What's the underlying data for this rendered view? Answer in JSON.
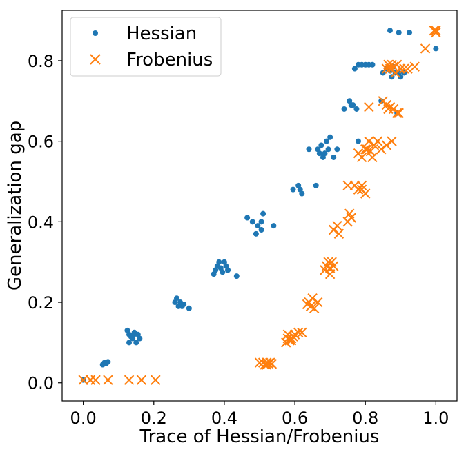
{
  "chart_data": {
    "type": "scatter",
    "title": "",
    "xlabel": "Trace of Hessian/Frobenius",
    "ylabel": "Generalization gap",
    "xlim": [
      -0.06,
      1.06
    ],
    "ylim": [
      -0.045,
      0.925
    ],
    "xticks": [
      {
        "value": 0.0,
        "label": "0.0"
      },
      {
        "value": 0.2,
        "label": "0.2"
      },
      {
        "value": 0.4,
        "label": "0.4"
      },
      {
        "value": 0.6,
        "label": "0.6"
      },
      {
        "value": 0.8,
        "label": "0.8"
      },
      {
        "value": 1.0,
        "label": "1.0"
      }
    ],
    "yticks": [
      {
        "value": 0.0,
        "label": "0.0"
      },
      {
        "value": 0.2,
        "label": "0.2"
      },
      {
        "value": 0.4,
        "label": "0.4"
      },
      {
        "value": 0.6,
        "label": "0.6"
      },
      {
        "value": 0.8,
        "label": "0.8"
      }
    ],
    "grid": false,
    "legend_position": "top-left",
    "series": [
      {
        "name": "Hessian",
        "marker": "circle",
        "color": "#1f77b4",
        "points": [
          [
            0.0,
            0.007
          ],
          [
            0.055,
            0.045
          ],
          [
            0.06,
            0.05
          ],
          [
            0.065,
            0.048
          ],
          [
            0.07,
            0.052
          ],
          [
            0.058,
            0.047
          ],
          [
            0.125,
            0.13
          ],
          [
            0.13,
            0.12
          ],
          [
            0.135,
            0.115
          ],
          [
            0.14,
            0.11
          ],
          [
            0.145,
            0.125
          ],
          [
            0.15,
            0.1
          ],
          [
            0.155,
            0.12
          ],
          [
            0.16,
            0.11
          ],
          [
            0.13,
            0.1
          ],
          [
            0.142,
            0.118
          ],
          [
            0.26,
            0.2
          ],
          [
            0.265,
            0.21
          ],
          [
            0.27,
            0.19
          ],
          [
            0.275,
            0.2
          ],
          [
            0.28,
            0.19
          ],
          [
            0.285,
            0.195
          ],
          [
            0.3,
            0.185
          ],
          [
            0.37,
            0.27
          ],
          [
            0.375,
            0.28
          ],
          [
            0.38,
            0.29
          ],
          [
            0.385,
            0.3
          ],
          [
            0.39,
            0.285
          ],
          [
            0.395,
            0.275
          ],
          [
            0.4,
            0.3
          ],
          [
            0.405,
            0.29
          ],
          [
            0.41,
            0.28
          ],
          [
            0.435,
            0.265
          ],
          [
            0.465,
            0.41
          ],
          [
            0.48,
            0.4
          ],
          [
            0.49,
            0.37
          ],
          [
            0.495,
            0.39
          ],
          [
            0.505,
            0.4
          ],
          [
            0.51,
            0.42
          ],
          [
            0.505,
            0.38
          ],
          [
            0.54,
            0.39
          ],
          [
            0.595,
            0.48
          ],
          [
            0.61,
            0.49
          ],
          [
            0.615,
            0.48
          ],
          [
            0.62,
            0.47
          ],
          [
            0.66,
            0.49
          ],
          [
            0.64,
            0.58
          ],
          [
            0.665,
            0.58
          ],
          [
            0.67,
            0.57
          ],
          [
            0.675,
            0.59
          ],
          [
            0.68,
            0.56
          ],
          [
            0.685,
            0.57
          ],
          [
            0.69,
            0.6
          ],
          [
            0.695,
            0.58
          ],
          [
            0.7,
            0.61
          ],
          [
            0.71,
            0.56
          ],
          [
            0.72,
            0.58
          ],
          [
            0.74,
            0.68
          ],
          [
            0.755,
            0.7
          ],
          [
            0.76,
            0.69
          ],
          [
            0.765,
            0.69
          ],
          [
            0.775,
            0.68
          ],
          [
            0.78,
            0.6
          ],
          [
            0.77,
            0.78
          ],
          [
            0.78,
            0.79
          ],
          [
            0.79,
            0.79
          ],
          [
            0.8,
            0.79
          ],
          [
            0.81,
            0.79
          ],
          [
            0.82,
            0.79
          ],
          [
            0.845,
            0.7
          ],
          [
            0.85,
            0.77
          ],
          [
            0.86,
            0.78
          ],
          [
            0.87,
            0.775
          ],
          [
            0.875,
            0.76
          ],
          [
            0.88,
            0.785
          ],
          [
            0.885,
            0.77
          ],
          [
            0.89,
            0.67
          ],
          [
            0.895,
            0.77
          ],
          [
            0.9,
            0.76
          ],
          [
            0.91,
            0.77
          ],
          [
            0.87,
            0.875
          ],
          [
            0.895,
            0.87
          ],
          [
            0.925,
            0.87
          ],
          [
            1.0,
            0.83
          ]
        ]
      },
      {
        "name": "Frobenius",
        "marker": "x",
        "color": "#ff7f0e",
        "points": [
          [
            0.0,
            0.007
          ],
          [
            0.02,
            0.007
          ],
          [
            0.035,
            0.007
          ],
          [
            0.07,
            0.007
          ],
          [
            0.13,
            0.007
          ],
          [
            0.165,
            0.007
          ],
          [
            0.205,
            0.007
          ],
          [
            0.5,
            0.05
          ],
          [
            0.51,
            0.05
          ],
          [
            0.515,
            0.045
          ],
          [
            0.52,
            0.05
          ],
          [
            0.525,
            0.048
          ],
          [
            0.53,
            0.05
          ],
          [
            0.535,
            0.047
          ],
          [
            0.52,
            0.045
          ],
          [
            0.575,
            0.1
          ],
          [
            0.58,
            0.11
          ],
          [
            0.585,
            0.105
          ],
          [
            0.59,
            0.11
          ],
          [
            0.595,
            0.115
          ],
          [
            0.6,
            0.12
          ],
          [
            0.61,
            0.125
          ],
          [
            0.62,
            0.125
          ],
          [
            0.58,
            0.12
          ],
          [
            0.59,
            0.105
          ],
          [
            0.635,
            0.195
          ],
          [
            0.64,
            0.2
          ],
          [
            0.645,
            0.19
          ],
          [
            0.65,
            0.21
          ],
          [
            0.655,
            0.185
          ],
          [
            0.665,
            0.2
          ],
          [
            0.685,
            0.28
          ],
          [
            0.69,
            0.29
          ],
          [
            0.695,
            0.3
          ],
          [
            0.7,
            0.27
          ],
          [
            0.705,
            0.3
          ],
          [
            0.71,
            0.29
          ],
          [
            0.7,
            0.285
          ],
          [
            0.71,
            0.38
          ],
          [
            0.72,
            0.39
          ],
          [
            0.725,
            0.37
          ],
          [
            0.75,
            0.4
          ],
          [
            0.755,
            0.42
          ],
          [
            0.76,
            0.41
          ],
          [
            0.75,
            0.49
          ],
          [
            0.77,
            0.49
          ],
          [
            0.78,
            0.48
          ],
          [
            0.79,
            0.49
          ],
          [
            0.8,
            0.47
          ],
          [
            0.79,
            0.48
          ],
          [
            0.78,
            0.57
          ],
          [
            0.79,
            0.56
          ],
          [
            0.8,
            0.58
          ],
          [
            0.805,
            0.58
          ],
          [
            0.81,
            0.6
          ],
          [
            0.815,
            0.575
          ],
          [
            0.82,
            0.56
          ],
          [
            0.825,
            0.59
          ],
          [
            0.835,
            0.6
          ],
          [
            0.845,
            0.58
          ],
          [
            0.86,
            0.59
          ],
          [
            0.875,
            0.6
          ],
          [
            0.81,
            0.685
          ],
          [
            0.85,
            0.7
          ],
          [
            0.86,
            0.69
          ],
          [
            0.865,
            0.68
          ],
          [
            0.87,
            0.685
          ],
          [
            0.88,
            0.68
          ],
          [
            0.89,
            0.67
          ],
          [
            0.895,
            0.67
          ],
          [
            0.86,
            0.78
          ],
          [
            0.865,
            0.79
          ],
          [
            0.87,
            0.78
          ],
          [
            0.875,
            0.79
          ],
          [
            0.88,
            0.785
          ],
          [
            0.885,
            0.77
          ],
          [
            0.89,
            0.79
          ],
          [
            0.9,
            0.78
          ],
          [
            0.91,
            0.78
          ],
          [
            0.92,
            0.78
          ],
          [
            0.94,
            0.785
          ],
          [
            0.97,
            0.83
          ],
          [
            0.995,
            0.875
          ],
          [
            1.0,
            0.875
          ],
          [
            1.0,
            0.87
          ]
        ]
      }
    ]
  }
}
